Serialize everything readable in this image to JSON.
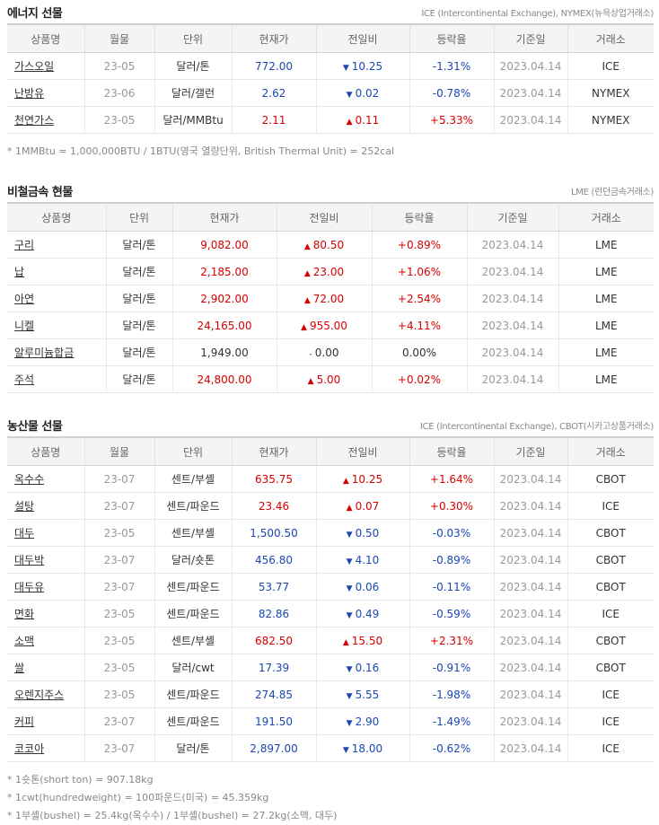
{
  "sections": {
    "energy": {
      "title": "에너지 선물",
      "source": "ICE (Intercontinental Exchange), NYMEX(뉴욕상업거래소)",
      "headers": [
        "상품명",
        "월물",
        "단위",
        "현재가",
        "전일비",
        "등락율",
        "기준일",
        "거래소"
      ],
      "rows": [
        {
          "name": "가스오일",
          "month": "23-05",
          "unit": "달러/톤",
          "price": "772.00",
          "dir": "down",
          "change": "10.25",
          "rate": "-1.31%",
          "date": "2023.04.14",
          "market": "ICE"
        },
        {
          "name": "난방유",
          "month": "23-06",
          "unit": "달러/갤런",
          "price": "2.62",
          "dir": "down",
          "change": "0.02",
          "rate": "-0.78%",
          "date": "2023.04.14",
          "market": "NYMEX"
        },
        {
          "name": "천연가스",
          "month": "23-05",
          "unit": "달러/MMBtu",
          "price": "2.11",
          "dir": "up",
          "change": "0.11",
          "rate": "+5.33%",
          "date": "2023.04.14",
          "market": "NYMEX"
        }
      ],
      "notes": [
        "* 1MMBtu = 1,000,000BTU / 1BTU(영국 열량단위, British Thermal Unit) = 252cal"
      ]
    },
    "metals": {
      "title": "비철금속 현물",
      "source": "LME (런던금속거래소)",
      "headers": [
        "상품명",
        "단위",
        "현재가",
        "전일비",
        "등락율",
        "기준일",
        "거래소"
      ],
      "rows": [
        {
          "name": "구리",
          "unit": "달러/톤",
          "price": "9,082.00",
          "dir": "up",
          "change": "80.50",
          "rate": "+0.89%",
          "date": "2023.04.14",
          "market": "LME"
        },
        {
          "name": "납",
          "unit": "달러/톤",
          "price": "2,185.00",
          "dir": "up",
          "change": "23.00",
          "rate": "+1.06%",
          "date": "2023.04.14",
          "market": "LME"
        },
        {
          "name": "아연",
          "unit": "달러/톤",
          "price": "2,902.00",
          "dir": "up",
          "change": "72.00",
          "rate": "+2.54%",
          "date": "2023.04.14",
          "market": "LME"
        },
        {
          "name": "니켈",
          "unit": "달러/톤",
          "price": "24,165.00",
          "dir": "up",
          "change": "955.00",
          "rate": "+4.11%",
          "date": "2023.04.14",
          "market": "LME"
        },
        {
          "name": "알루미늄합금",
          "unit": "달러/톤",
          "price": "1,949.00",
          "dir": "flat",
          "change": "0.00",
          "rate": "0.00%",
          "date": "2023.04.14",
          "market": "LME"
        },
        {
          "name": "주석",
          "unit": "달러/톤",
          "price": "24,800.00",
          "dir": "up",
          "change": "5.00",
          "rate": "+0.02%",
          "date": "2023.04.14",
          "market": "LME"
        }
      ],
      "notes": []
    },
    "agri": {
      "title": "농산물 선물",
      "source": "ICE (Intercontinental Exchange), CBOT(시카고상품거래소)",
      "headers": [
        "상품명",
        "월물",
        "단위",
        "현재가",
        "전일비",
        "등락율",
        "기준일",
        "거래소"
      ],
      "rows": [
        {
          "name": "옥수수",
          "month": "23-07",
          "unit": "센트/부셸",
          "price": "635.75",
          "dir": "up",
          "change": "10.25",
          "rate": "+1.64%",
          "date": "2023.04.14",
          "market": "CBOT"
        },
        {
          "name": "설탕",
          "month": "23-07",
          "unit": "센트/파운드",
          "price": "23.46",
          "dir": "up",
          "change": "0.07",
          "rate": "+0.30%",
          "date": "2023.04.14",
          "market": "ICE"
        },
        {
          "name": "대두",
          "month": "23-05",
          "unit": "센트/부셸",
          "price": "1,500.50",
          "dir": "down",
          "change": "0.50",
          "rate": "-0.03%",
          "date": "2023.04.14",
          "market": "CBOT"
        },
        {
          "name": "대두박",
          "month": "23-07",
          "unit": "달러/숏톤",
          "price": "456.80",
          "dir": "down",
          "change": "4.10",
          "rate": "-0.89%",
          "date": "2023.04.14",
          "market": "CBOT"
        },
        {
          "name": "대두유",
          "month": "23-07",
          "unit": "센트/파운드",
          "price": "53.77",
          "dir": "down",
          "change": "0.06",
          "rate": "-0.11%",
          "date": "2023.04.14",
          "market": "CBOT"
        },
        {
          "name": "면화",
          "month": "23-05",
          "unit": "센트/파운드",
          "price": "82.86",
          "dir": "down",
          "change": "0.49",
          "rate": "-0.59%",
          "date": "2023.04.14",
          "market": "ICE"
        },
        {
          "name": "소맥",
          "month": "23-05",
          "unit": "센트/부셸",
          "price": "682.50",
          "dir": "up",
          "change": "15.50",
          "rate": "+2.31%",
          "date": "2023.04.14",
          "market": "CBOT"
        },
        {
          "name": "쌀",
          "month": "23-05",
          "unit": "달러/cwt",
          "price": "17.39",
          "dir": "down",
          "change": "0.16",
          "rate": "-0.91%",
          "date": "2023.04.14",
          "market": "CBOT"
        },
        {
          "name": "오렌지주스",
          "month": "23-05",
          "unit": "센트/파운드",
          "price": "274.85",
          "dir": "down",
          "change": "5.55",
          "rate": "-1.98%",
          "date": "2023.04.14",
          "market": "ICE"
        },
        {
          "name": "커피",
          "month": "23-07",
          "unit": "센트/파운드",
          "price": "191.50",
          "dir": "down",
          "change": "2.90",
          "rate": "-1.49%",
          "date": "2023.04.14",
          "market": "ICE"
        },
        {
          "name": "코코아",
          "month": "23-07",
          "unit": "달러/톤",
          "price": "2,897.00",
          "dir": "down",
          "change": "18.00",
          "rate": "-0.62%",
          "date": "2023.04.14",
          "market": "ICE"
        }
      ],
      "notes": [
        "* 1숏톤(short ton) = 907.18kg",
        "* 1cwt(hundredweight) = 100파운드(미국) = 45.359kg",
        "* 1부셸(bushel) = 25.4kg(옥수수) / 1부셸(bushel) = 27.2kg(소맥, 대두)"
      ]
    }
  },
  "arrows": {
    "up": "▲",
    "down": "▼",
    "flat": "-"
  },
  "colors": {
    "up": "#d60000",
    "down": "#1c47b1",
    "header_bg": "#f4f4f4"
  }
}
